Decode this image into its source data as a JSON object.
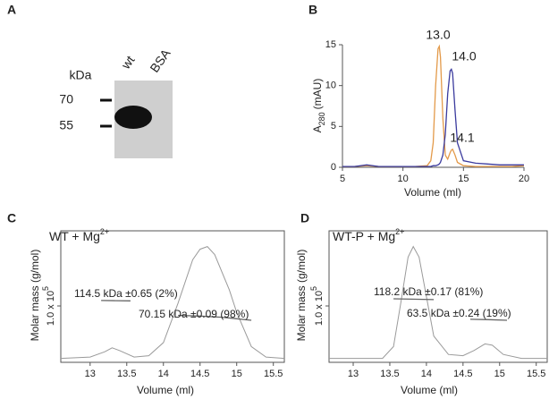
{
  "gel": {
    "panel_label": "A",
    "unit": "kDa",
    "lanes": [
      "wt",
      "BSA"
    ],
    "markers": [
      70,
      55
    ]
  },
  "chart_data": [
    {
      "type": "line",
      "panel_label": "B",
      "xlabel": "Volume (ml)",
      "ylabel": "A",
      "ylabel_sub": "280",
      "ylabel_suffix": "(mAU)",
      "frame": false,
      "x": [
        5,
        6,
        7,
        8,
        9,
        10,
        11,
        12,
        12.3,
        12.5,
        12.7,
        12.9,
        13.0,
        13.1,
        13.3,
        13.5,
        13.7,
        13.9,
        14.0,
        14.1,
        14.3,
        14.5,
        15,
        16,
        17,
        18,
        19,
        20
      ],
      "series": [
        {
          "color": "#e39a4a",
          "values": [
            0.1,
            0.1,
            0.2,
            0.1,
            0.1,
            0.1,
            0.1,
            0.2,
            0.8,
            3,
            10,
            14.5,
            14.8,
            13.5,
            6,
            1.5,
            1.0,
            1.8,
            2.1,
            2.2,
            1.5,
            0.6,
            0.2,
            0.1,
            0.1,
            0.1,
            0.1,
            0.2
          ]
        },
        {
          "color": "#3b3b9e",
          "values": [
            0.1,
            0.1,
            0.3,
            0.1,
            0.1,
            0.1,
            0.1,
            0.1,
            0.1,
            0.2,
            0.2,
            0.3,
            0.4,
            0.6,
            1.5,
            4,
            9,
            11.8,
            12.0,
            11.5,
            7,
            3,
            0.8,
            0.5,
            0.4,
            0.3,
            0.3,
            0.3
          ]
        }
      ],
      "xlim": [
        5,
        20
      ],
      "xticks": [
        5,
        10,
        15,
        20
      ],
      "ylim": [
        0,
        15
      ],
      "yticks": [
        0,
        5,
        10,
        15
      ],
      "annotations": [
        {
          "text": "13.0",
          "color": "#c67a3c"
        },
        {
          "text": "14.0",
          "color": "#3b3b9e"
        },
        {
          "text": "14.1",
          "color": "#c67a3c"
        }
      ]
    },
    {
      "type": "line",
      "panel_label": "C",
      "title": "WT + Mg",
      "title_sup": "2+",
      "xlabel": "Volume (ml)",
      "ylabel": "Molar mass (g/mol)",
      "frame": true,
      "series": [
        {
          "color": "#9a9a9a",
          "axis": "y2",
          "x": [
            12.6,
            13.0,
            13.2,
            13.3,
            13.4,
            13.6,
            13.8,
            14.0,
            14.2,
            14.4,
            14.5,
            14.6,
            14.7,
            14.9,
            15.0,
            15.2,
            15.4,
            15.65
          ],
          "values": [
            0.03,
            0.04,
            0.08,
            0.11,
            0.09,
            0.04,
            0.05,
            0.15,
            0.45,
            0.78,
            0.86,
            0.88,
            0.82,
            0.55,
            0.38,
            0.12,
            0.04,
            0.03
          ]
        },
        {
          "color": "#666666",
          "x": [
            13.15,
            13.35,
            13.55
          ],
          "values": [
            114500,
            114000,
            113500
          ]
        },
        {
          "color": "#666666",
          "x": [
            14.2,
            14.5,
            14.8,
            15.0,
            15.2
          ],
          "values": [
            75000,
            73000,
            70000,
            66000,
            62000
          ]
        }
      ],
      "xlim": [
        12.6,
        15.65
      ],
      "xticks": [
        13,
        13.5,
        14,
        14.5,
        15,
        15.5
      ],
      "ylim": [
        -50000,
        300000
      ],
      "yticks": [
        {
          "value": 100000,
          "label": "1.0 x 10",
          "label_sup": "5"
        }
      ],
      "y2lim": [
        0,
        1
      ],
      "annotations": [
        {
          "text": "114.5 kDa ±0.65 (2%)",
          "color": "#222222"
        },
        {
          "text": "70.15 kDa ±0.09 (98%)",
          "color": "#222222"
        }
      ]
    },
    {
      "type": "line",
      "panel_label": "D",
      "title": "WT-P + Mg",
      "title_sup": "2+",
      "xlabel": "Volume (ml)",
      "ylabel": "Molar mass (g/mol)",
      "frame": true,
      "series": [
        {
          "color": "#9a9a9a",
          "axis": "y2",
          "x": [
            12.67,
            13.4,
            13.55,
            13.65,
            13.75,
            13.82,
            13.9,
            14.0,
            14.1,
            14.3,
            14.5,
            14.65,
            14.8,
            14.9,
            15.05,
            15.3,
            15.65
          ],
          "values": [
            0.03,
            0.03,
            0.12,
            0.45,
            0.8,
            0.88,
            0.8,
            0.5,
            0.2,
            0.06,
            0.05,
            0.09,
            0.14,
            0.13,
            0.06,
            0.03,
            0.03
          ]
        },
        {
          "color": "#666666",
          "x": [
            13.55,
            13.8,
            14.1
          ],
          "values": [
            119000,
            118200,
            117000
          ]
        },
        {
          "color": "#666666",
          "x": [
            14.6,
            14.85,
            15.1
          ],
          "values": [
            64500,
            63500,
            62000
          ]
        }
      ],
      "xlim": [
        12.67,
        15.65
      ],
      "xticks": [
        13,
        13.5,
        14,
        14.5,
        15,
        15.5
      ],
      "ylim": [
        -50000,
        300000
      ],
      "yticks": [
        {
          "value": 100000,
          "label": "1.0 x 10",
          "label_sup": "5"
        }
      ],
      "y2lim": [
        0,
        1
      ],
      "annotations": [
        {
          "text": "118.2 kDa ±0.17 (81%)",
          "color": "#222222"
        },
        {
          "text": "63.5 kDa ±0.24 (19%)",
          "color": "#222222"
        }
      ]
    }
  ]
}
